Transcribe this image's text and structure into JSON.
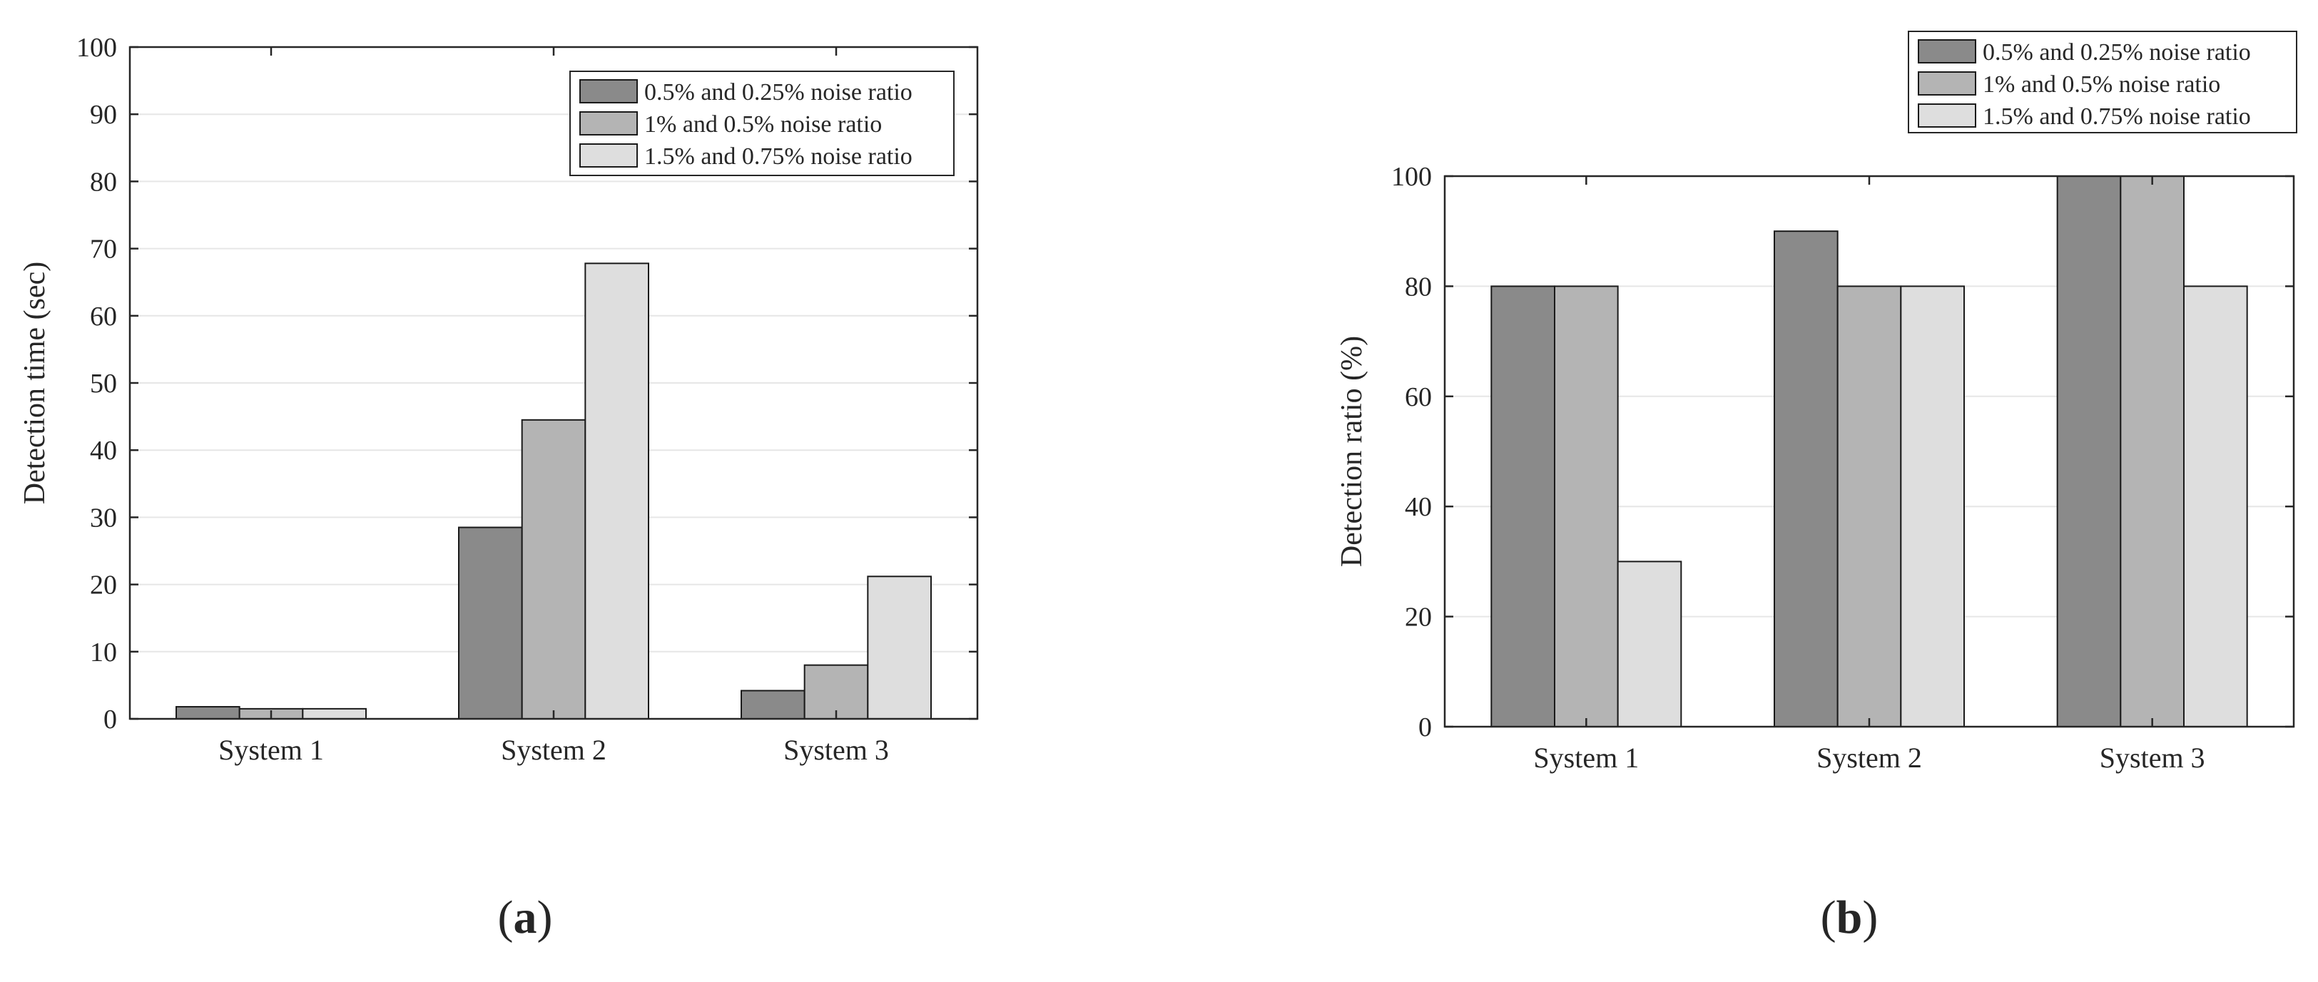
{
  "chart_data": [
    {
      "type": "bar",
      "panel_label": "a",
      "categories": [
        "System 1",
        "System 2",
        "System 3"
      ],
      "series": [
        {
          "name": "0.5% and 0.25% noise ratio",
          "color": "#8a8a8a",
          "values": [
            1.8,
            28.5,
            4.2
          ]
        },
        {
          "name": "1% and 0.5% noise ratio",
          "color": "#b4b4b4",
          "values": [
            1.5,
            44.5,
            8.0
          ]
        },
        {
          "name": "1.5% and 0.75% noise ratio",
          "color": "#dedede",
          "values": [
            1.5,
            67.8,
            21.2
          ]
        }
      ],
      "title": "",
      "xlabel": "",
      "ylabel": "Detection time (sec)",
      "ylim": [
        0,
        100
      ],
      "yticks": [
        0,
        10,
        20,
        30,
        40,
        50,
        60,
        70,
        80,
        90,
        100
      ],
      "grid": "horizontal",
      "legend": "top-right"
    },
    {
      "type": "bar",
      "panel_label": "b",
      "categories": [
        "System 1",
        "System 2",
        "System 3"
      ],
      "series": [
        {
          "name": "0.5% and 0.25% noise ratio",
          "color": "#8a8a8a",
          "values": [
            80,
            90,
            100
          ]
        },
        {
          "name": "1% and 0.5% noise ratio",
          "color": "#b4b4b4",
          "values": [
            80,
            80,
            100
          ]
        },
        {
          "name": "1.5% and 0.75% noise ratio",
          "color": "#dedede",
          "values": [
            30,
            80,
            80
          ]
        }
      ],
      "title": "",
      "xlabel": "",
      "ylabel": "Detection ratio (%)",
      "ylim": [
        0,
        100
      ],
      "yticks": [
        0,
        20,
        40,
        60,
        80,
        100
      ],
      "grid": "horizontal",
      "legend": "above-top-right"
    }
  ]
}
